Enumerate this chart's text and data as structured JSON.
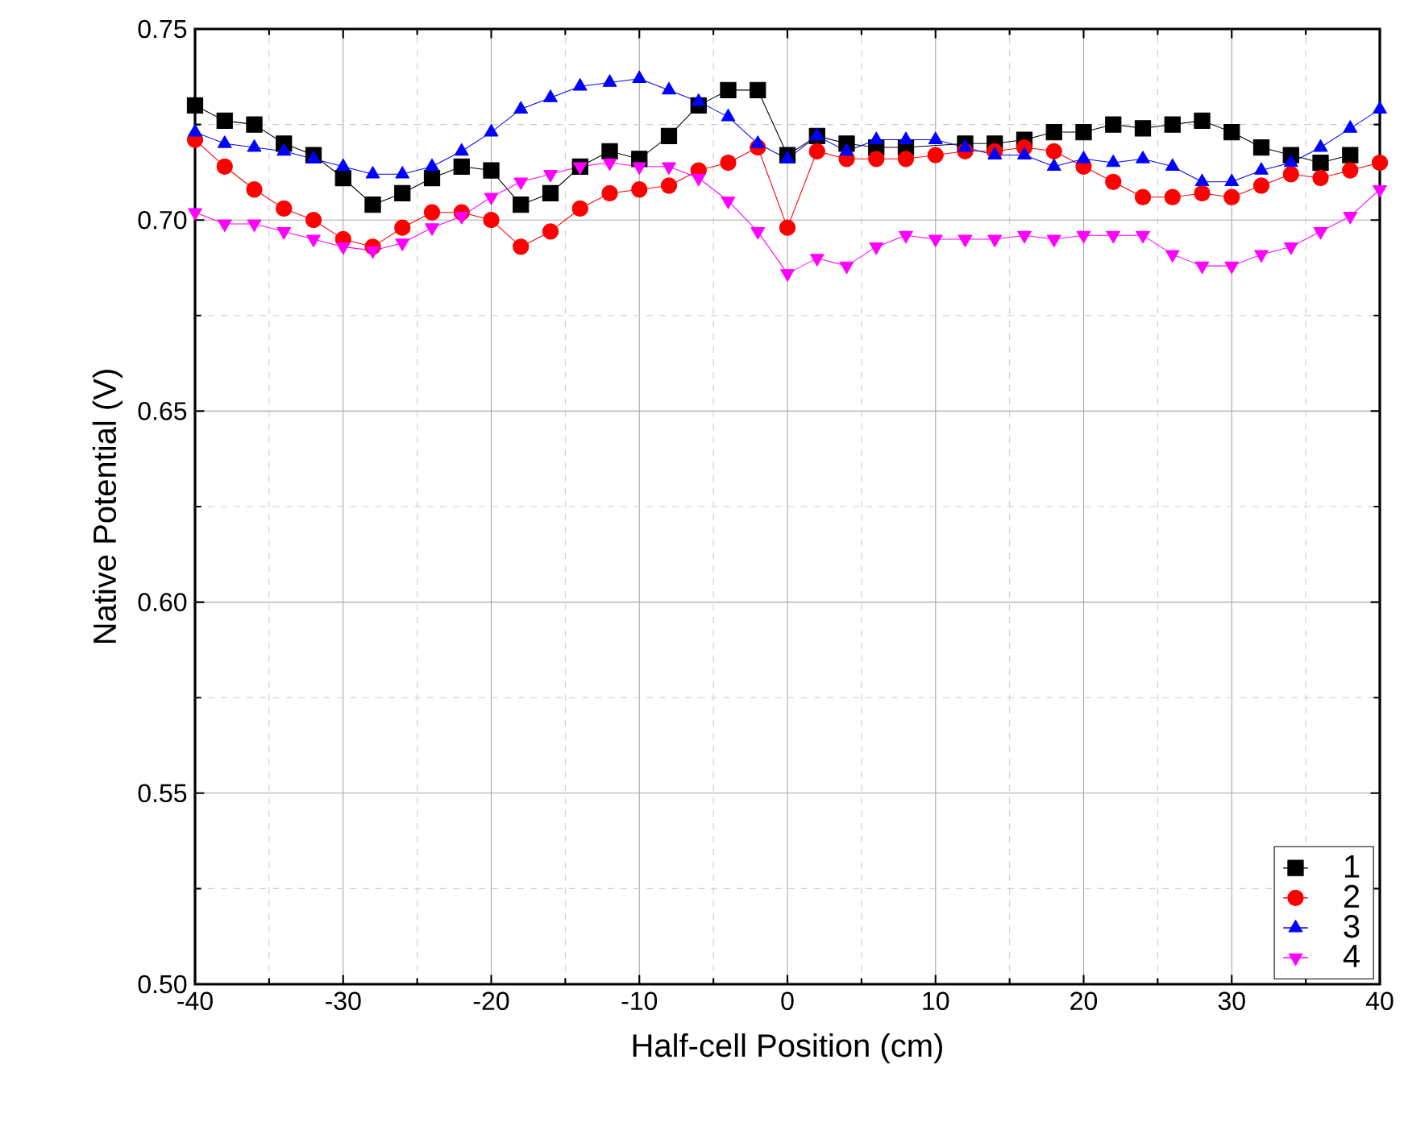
{
  "chart_data": {
    "type": "line",
    "xlabel": "Half-cell Position (cm)",
    "ylabel": "Native Potential (V)",
    "x": [
      -40,
      -38,
      -36,
      -34,
      -32,
      -30,
      -28,
      -26,
      -24,
      -22,
      -20,
      -18,
      -16,
      -14,
      -12,
      -10,
      -8,
      -6,
      -4,
      -2,
      0,
      2,
      4,
      6,
      8,
      10,
      12,
      14,
      16,
      18,
      20,
      22,
      24,
      26,
      28,
      30,
      32,
      34,
      36,
      38,
      40
    ],
    "xlim": [
      -40,
      40
    ],
    "xticks": [
      -40,
      -30,
      -20,
      -10,
      0,
      10,
      20,
      30,
      40
    ],
    "ylim": [
      0.5,
      0.75
    ],
    "yticks": [
      {
        "value": 0.5,
        "label": "0.50"
      },
      {
        "value": 0.55,
        "label": "0.55"
      },
      {
        "value": 0.6,
        "label": "0.60"
      },
      {
        "value": 0.65,
        "label": "0.65"
      },
      {
        "value": 0.7,
        "label": "0.70"
      },
      {
        "value": 0.75,
        "label": "0.75"
      }
    ],
    "grid": true,
    "legend": "bottom right",
    "series": [
      {
        "name": "1",
        "color": "#000000",
        "marker": "square",
        "values": [
          0.73,
          0.726,
          0.725,
          0.72,
          0.717,
          0.711,
          0.704,
          0.707,
          0.711,
          0.714,
          0.713,
          0.704,
          0.707,
          0.714,
          0.718,
          0.716,
          0.722,
          0.73,
          0.734,
          0.734,
          0.717,
          0.722,
          0.72,
          0.719,
          0.719,
          null,
          0.72,
          0.72,
          0.721,
          0.723,
          0.723,
          0.725,
          0.724,
          0.725,
          0.726,
          0.723,
          0.719,
          0.717,
          0.715,
          0.717,
          null
        ]
      },
      {
        "name": "2",
        "color": "#ff0000",
        "marker": "circle",
        "values": [
          0.721,
          0.714,
          0.708,
          0.703,
          0.7,
          0.695,
          0.693,
          0.698,
          0.702,
          0.702,
          0.7,
          0.693,
          0.697,
          0.703,
          0.707,
          0.708,
          0.709,
          0.713,
          0.715,
          0.719,
          0.698,
          0.718,
          0.716,
          0.716,
          0.716,
          0.717,
          0.718,
          0.718,
          0.719,
          0.718,
          0.714,
          0.71,
          0.706,
          0.706,
          0.707,
          0.706,
          0.709,
          0.712,
          0.711,
          0.713,
          0.715
        ]
      },
      {
        "name": "3",
        "color": "#0000ff",
        "marker": "triangle",
        "values": [
          0.723,
          0.72,
          0.719,
          0.718,
          0.716,
          0.714,
          0.712,
          0.712,
          0.714,
          0.718,
          0.723,
          0.729,
          0.732,
          0.735,
          0.736,
          0.737,
          0.734,
          0.731,
          0.727,
          0.72,
          0.716,
          0.722,
          0.718,
          0.721,
          0.721,
          0.721,
          0.719,
          0.717,
          0.717,
          0.714,
          0.716,
          0.715,
          0.716,
          0.714,
          0.71,
          0.71,
          0.713,
          0.715,
          0.719,
          0.724,
          0.729
        ]
      },
      {
        "name": "4",
        "color": "#ff00ff",
        "marker": "triangle down",
        "values": [
          0.702,
          0.699,
          0.699,
          0.697,
          0.695,
          0.693,
          0.692,
          0.694,
          0.698,
          0.701,
          0.706,
          0.71,
          0.712,
          0.714,
          0.715,
          0.714,
          0.714,
          0.711,
          0.705,
          0.697,
          0.686,
          0.69,
          0.688,
          0.693,
          0.696,
          0.695,
          0.695,
          0.695,
          0.696,
          0.695,
          0.696,
          0.696,
          0.696,
          0.691,
          0.688,
          0.688,
          0.691,
          0.693,
          0.697,
          0.701,
          0.708
        ]
      }
    ]
  }
}
